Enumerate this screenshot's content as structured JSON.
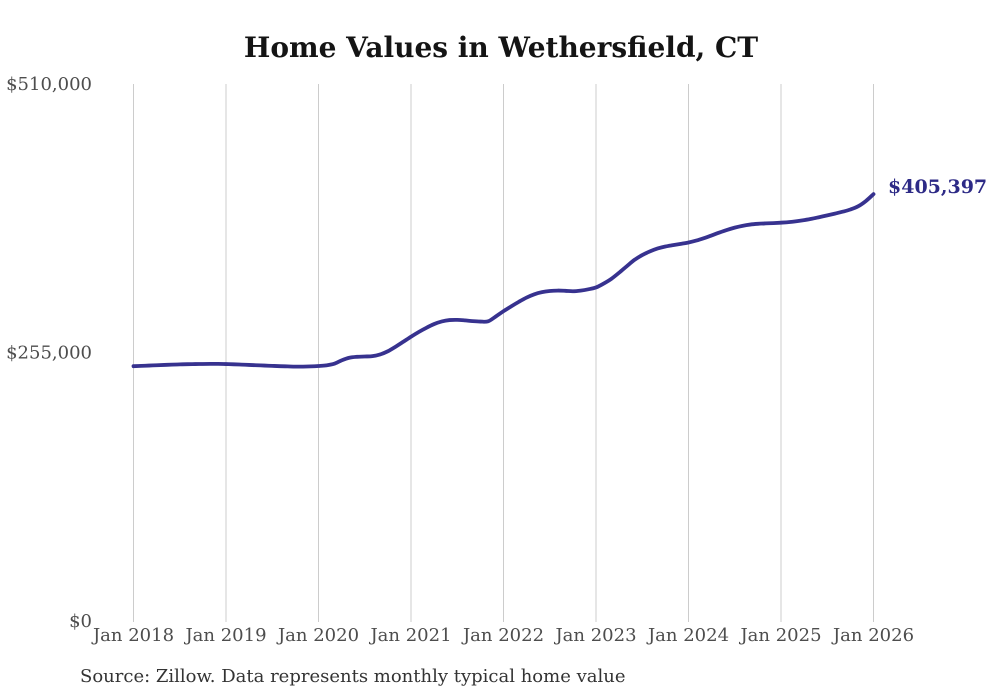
{
  "colors": {
    "background": "#ffffff",
    "line": "#37328f",
    "annotation_text": "#2d2a86",
    "grid": "#cccccc",
    "tick_text": "#4d4d4d",
    "title_text": "#141414",
    "source_text": "#333333"
  },
  "chart_data": {
    "type": "line",
    "title": "Home Values in Wethersfield, CT",
    "source_note": "Source: Zillow. Data represents monthly typical home value",
    "grid": "vertical-only",
    "legend": "none",
    "x_axis": {
      "unit": "month",
      "start": "Jan 2018",
      "end": "Jan 2026",
      "tick_labels": [
        "Jan 2018",
        "Jan 2019",
        "Jan 2020",
        "Jan 2021",
        "Jan 2022",
        "Jan 2023",
        "Jan 2024",
        "Jan 2025",
        "Jan 2026"
      ]
    },
    "y_axis": {
      "range": [
        0,
        510000
      ],
      "ticks": [
        {
          "value": 0,
          "label": "$0"
        },
        {
          "value": 255000,
          "label": "$255,000"
        },
        {
          "value": 510000,
          "label": "$510,000"
        }
      ]
    },
    "annotation": {
      "label": "$405,397",
      "value": 405397,
      "at": "Jan 2026"
    },
    "series": [
      {
        "name": "Typical home value",
        "unit": "USD",
        "frequency": "monthly",
        "values": [
          242000,
          242300,
          242600,
          242900,
          243200,
          243500,
          243700,
          243900,
          244000,
          244100,
          244200,
          244200,
          244000,
          243800,
          243500,
          243200,
          242900,
          242600,
          242300,
          242000,
          241800,
          241600,
          241600,
          241800,
          242200,
          242800,
          244200,
          247500,
          250000,
          250900,
          251200,
          251600,
          253200,
          256200,
          260500,
          265200,
          270000,
          274500,
          278500,
          282000,
          284500,
          285800,
          286000,
          285500,
          284800,
          284400,
          284600,
          289200,
          294200,
          298800,
          303200,
          307200,
          310300,
          312300,
          313400,
          313800,
          313600,
          313200,
          313800,
          315000,
          316800,
          320500,
          325000,
          330800,
          337000,
          343000,
          347500,
          351000,
          353800,
          355700,
          357000,
          358200,
          359500,
          361300,
          363600,
          366200,
          368900,
          371400,
          373600,
          375300,
          376500,
          377200,
          377600,
          377900,
          378300,
          378800,
          379600,
          380700,
          382000,
          383600,
          385200,
          386900,
          388700,
          390800,
          393800,
          398800,
          405397
        ]
      }
    ]
  }
}
